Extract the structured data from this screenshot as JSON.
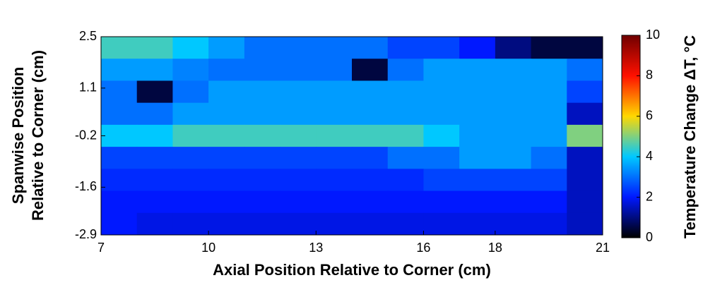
{
  "chart_data": {
    "type": "heatmap",
    "xlabel": "Axial Position Relative to Corner (cm)",
    "ylabel": [
      "Spanwise Position",
      "Relative to Corner (cm)"
    ],
    "colorbar_label": "Temperature Change ΔT, °C",
    "x": [
      7.5,
      8.5,
      9.5,
      10.5,
      11.5,
      12.5,
      13.5,
      14.5,
      15.5,
      16.5,
      17.5,
      18.5,
      19.5,
      20.5
    ],
    "y": [
      2.2,
      1.6,
      1.0,
      0.4,
      -0.2,
      -0.8,
      -1.4,
      -2.0,
      -2.6
    ],
    "z": [
      [
        4.5,
        4.5,
        4,
        3.5,
        3,
        3,
        3,
        3,
        2.5,
        2.5,
        2,
        1,
        0.5,
        0.5
      ],
      [
        3.5,
        3.5,
        3.2,
        3,
        3,
        3,
        3,
        0.5,
        3,
        3.5,
        3.5,
        3.5,
        3.5,
        3
      ],
      [
        3,
        0.5,
        3,
        3.5,
        3.5,
        3.5,
        3.5,
        3.5,
        3.5,
        3.5,
        3.5,
        3.5,
        3.5,
        2.5
      ],
      [
        3,
        3,
        3.5,
        3.5,
        3.5,
        3.5,
        3.5,
        3.5,
        3.5,
        3.5,
        3.5,
        3.5,
        3.5,
        1.5
      ],
      [
        4,
        4,
        4.5,
        4.5,
        4.5,
        4.5,
        4.5,
        4.5,
        4.5,
        4,
        3.5,
        3.5,
        3.5,
        5
      ],
      [
        2.5,
        2.5,
        2.5,
        2.5,
        2.5,
        2.5,
        2.5,
        2.5,
        3,
        3,
        3.5,
        3.5,
        3,
        1.5
      ],
      [
        2.2,
        2.2,
        2.2,
        2.2,
        2.2,
        2.2,
        2.2,
        2.2,
        2.2,
        2.5,
        2.5,
        2.5,
        2.5,
        1.5
      ],
      [
        2,
        2,
        2,
        2,
        2,
        2,
        2,
        2,
        2,
        2,
        2,
        2,
        2,
        1.5
      ],
      [
        2,
        1.8,
        1.8,
        1.8,
        1.8,
        1.8,
        1.8,
        1.8,
        1.8,
        1.8,
        1.8,
        1.8,
        1.8,
        1.5
      ]
    ],
    "colormap": [
      "#000000",
      "#0018ff",
      "#00c8ff",
      "#ffd800",
      "#ff1000",
      "#700000"
    ],
    "clim": [
      0,
      10
    ],
    "cticks": [
      0,
      2,
      4,
      6,
      8,
      10
    ],
    "xlim": [
      7,
      21
    ],
    "xticks": [
      7,
      10,
      13,
      16,
      18,
      21
    ],
    "ylim": [
      -2.9,
      2.5
    ],
    "yticks": [
      2.5,
      1.1,
      -0.2,
      -1.6,
      -2.9
    ]
  }
}
